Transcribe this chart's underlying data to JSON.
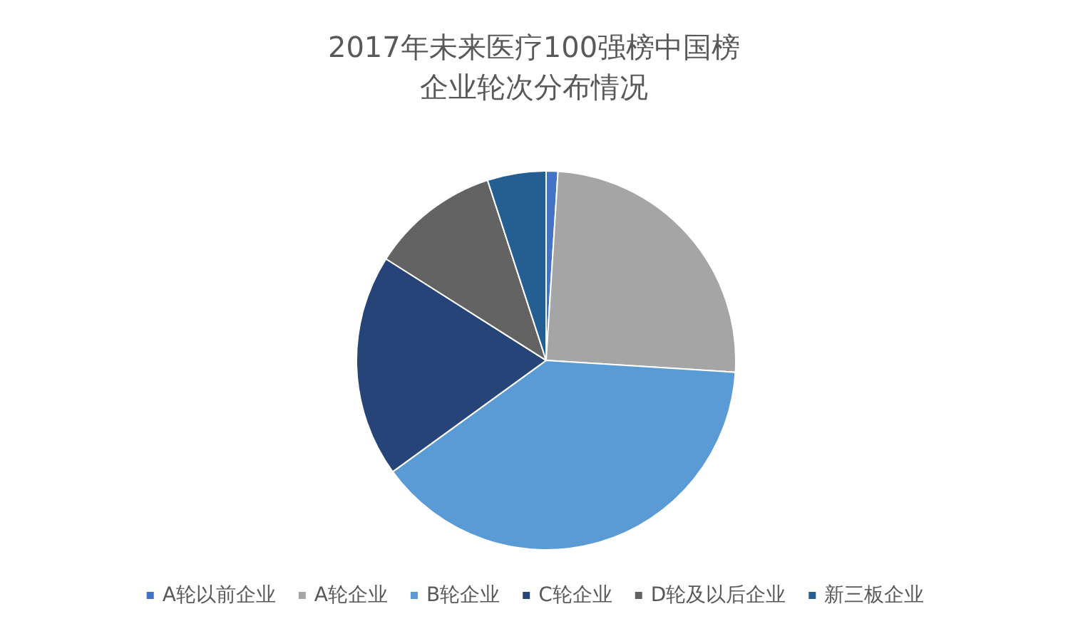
{
  "chart_data": {
    "type": "pie",
    "title": "2017年未来医疗100强榜中国榜",
    "subtitle": "企业轮次分布情况",
    "categories": [
      "A轮以前企业",
      "A轮企业",
      "B轮企业",
      "C轮企业",
      "D轮及以后企业",
      "新三板企业"
    ],
    "values": [
      1,
      25,
      39,
      19,
      11,
      5
    ],
    "colors": [
      "#4472c4",
      "#a5a5a5",
      "#5b9bd5",
      "#264478",
      "#636363",
      "#255e91"
    ],
    "legend": "bottom"
  }
}
